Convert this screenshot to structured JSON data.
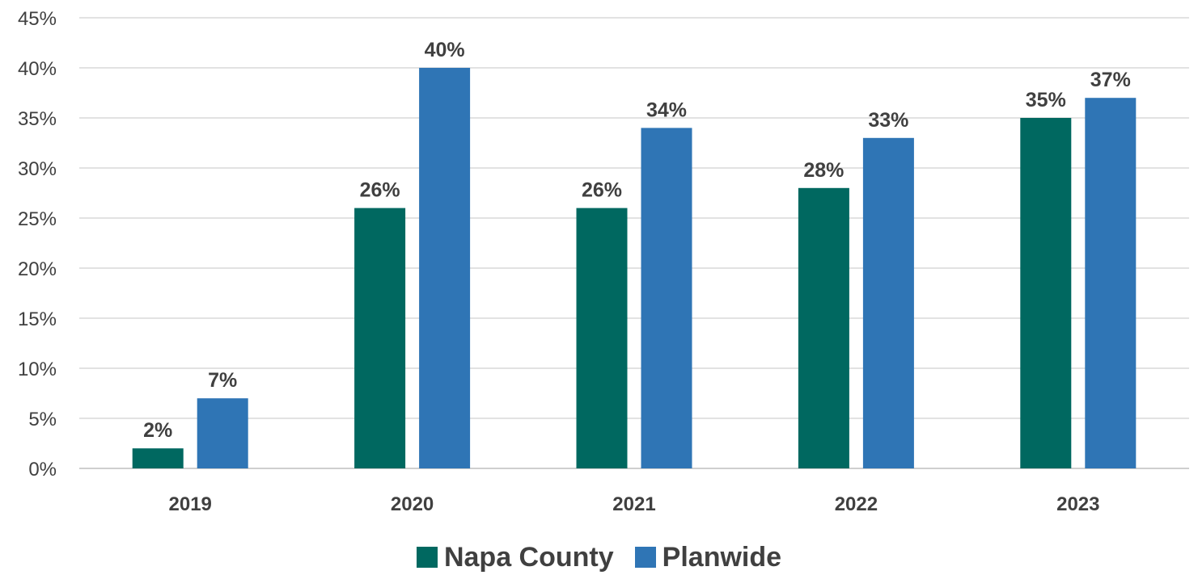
{
  "chart_data": {
    "type": "bar",
    "categories": [
      "2019",
      "2020",
      "2021",
      "2022",
      "2023"
    ],
    "series": [
      {
        "name": "Napa County",
        "values": [
          2,
          26,
          26,
          28,
          35
        ],
        "labels": [
          "2%",
          "26%",
          "26%",
          "28%",
          "35%"
        ],
        "color": "#006860"
      },
      {
        "name": "Planwide",
        "values": [
          7,
          40,
          34,
          33,
          37
        ],
        "labels": [
          "7%",
          "40%",
          "34%",
          "33%",
          "37%"
        ],
        "color": "#2F75B5"
      }
    ],
    "title": "",
    "xlabel": "",
    "ylabel": "",
    "ylim": [
      0,
      45
    ],
    "yticks": [
      0,
      5,
      10,
      15,
      20,
      25,
      30,
      35,
      40,
      45
    ],
    "ytick_labels": [
      "0%",
      "5%",
      "10%",
      "15%",
      "20%",
      "25%",
      "30%",
      "35%",
      "40%",
      "45%"
    ],
    "grid": true,
    "legend_position": "bottom"
  }
}
